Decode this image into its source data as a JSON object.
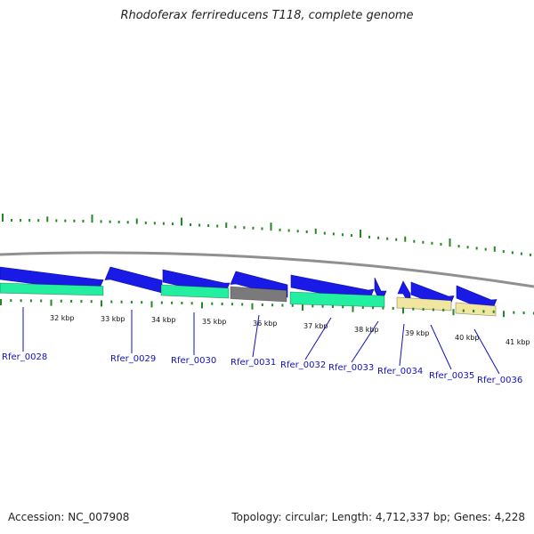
{
  "title": "Rhodoferax ferrireducens T118, complete genome",
  "accession": "Accession: NC_007908",
  "summary": "Topology: circular; Length: 4,712,337 bp; Genes: 4,228",
  "colors": {
    "track_line": "#909090",
    "tick": "#228822",
    "label": "#1010c0",
    "gene_blue": "#1a1ae6",
    "cds_green": "#22f0a0",
    "cds_grey": "#7a7a7a",
    "cds_khaki": "#f0e6a0"
  },
  "scale_labels": [
    "32 kbp",
    "33 kbp",
    "34 kbp",
    "35 kbp",
    "36 kbp",
    "37 kbp",
    "38 kbp",
    "39 kbp",
    "40 kbp",
    "41 kbp"
  ],
  "genes": [
    "Rfer_0028",
    "Rfer_0029",
    "Rfer_0030",
    "Rfer_0031",
    "Rfer_0032",
    "Rfer_0033",
    "Rfer_0034",
    "Rfer_0035",
    "Rfer_0036"
  ]
}
